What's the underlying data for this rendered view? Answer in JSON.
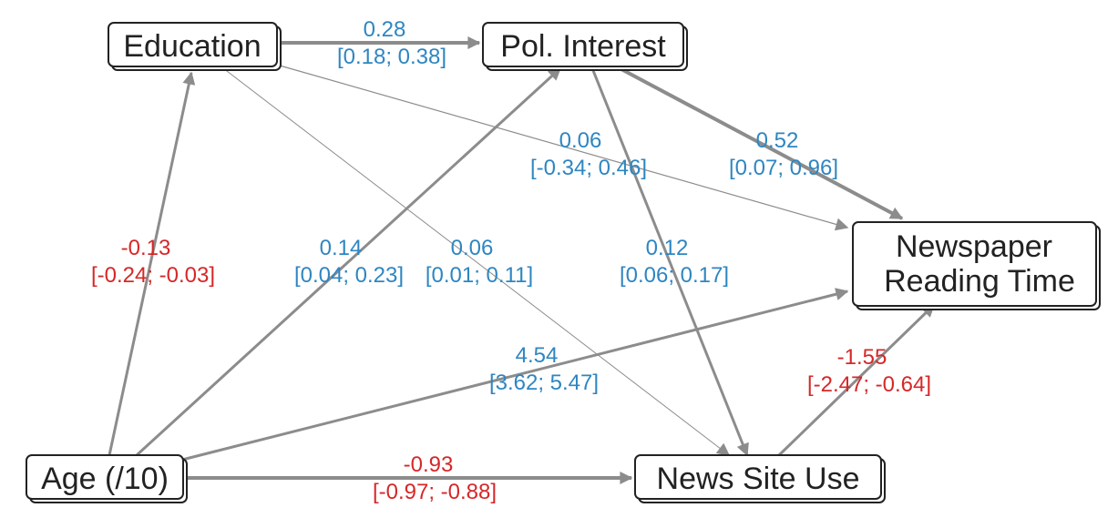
{
  "nodes": {
    "education": "Education",
    "pol_interest": "Pol. Interest",
    "newspaper_line1": "Newspaper",
    "newspaper_line2": "Reading Time",
    "age": "Age (/10)",
    "news_site": "News Site Use"
  },
  "edges": {
    "edu_pol": {
      "est": "0.28",
      "ci": "[0.18; 0.38]"
    },
    "edu_news": {
      "est": "0.06",
      "ci": "[-0.34; 0.46]"
    },
    "pol_news": {
      "est": "0.52",
      "ci": "[0.07; 0.96]"
    },
    "age_edu": {
      "est": "-0.13",
      "ci": "[-0.24; -0.03]"
    },
    "age_pol": {
      "est": "0.14",
      "ci": "[0.04; 0.23]"
    },
    "edu_site": {
      "est": "0.06",
      "ci": "[0.01; 0.11]"
    },
    "pol_site": {
      "est": "0.12",
      "ci": "[0.06; 0.17]"
    },
    "age_news": {
      "est": "4.54",
      "ci": "[3.62; 5.47]"
    },
    "site_news": {
      "est": "-1.55",
      "ci": "[-2.47; -0.64]"
    },
    "age_site": {
      "est": "-0.93",
      "ci": "[-0.97; -0.88]"
    }
  },
  "colors": {
    "positive": "#2e86c1",
    "negative": "#d62728",
    "edge": "#8c8c8c",
    "node_border": "#222222"
  }
}
